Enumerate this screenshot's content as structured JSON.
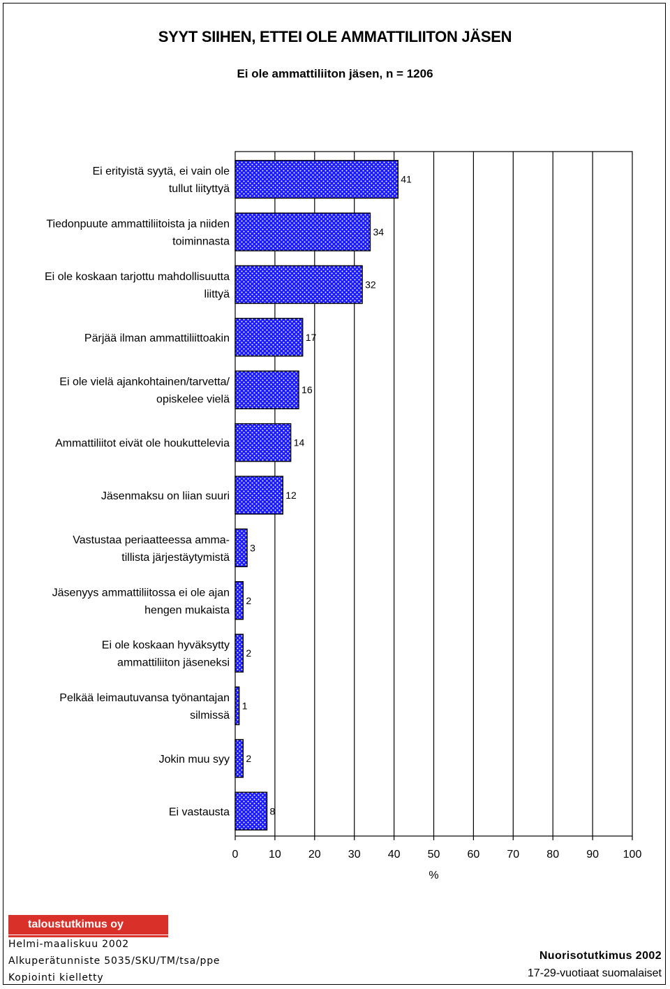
{
  "title": "SYYT SIIHEN, ETTEI OLE AMMATTILIITON JÄSEN",
  "subtitle": "Ei ole ammattiliiton jäsen, n = 1206",
  "chart_data": {
    "type": "bar",
    "orientation": "horizontal",
    "title": "SYYT SIIHEN, ETTEI OLE AMMATTILIITON JÄSEN",
    "subtitle": "Ei ole ammattiliiton jäsen, n = 1206",
    "xlabel": "%",
    "ylabel": "",
    "xlim": [
      0,
      100
    ],
    "xticks": [
      0,
      10,
      20,
      30,
      40,
      50,
      60,
      70,
      80,
      90,
      100
    ],
    "grid": true,
    "categories": [
      [
        "Ei erityistä syytä, ei vain ole",
        "tullut liityttyä"
      ],
      [
        "Tiedonpuute ammattiliitoista ja niiden",
        "toiminnasta"
      ],
      [
        "Ei ole koskaan tarjottu mahdollisuutta",
        "liittyä"
      ],
      [
        "Pärjää ilman ammattiliittoakin"
      ],
      [
        "Ei ole vielä ajankohtainen/tarvetta/",
        "opiskelee vielä"
      ],
      [
        "Ammattiliitot eivät ole houkuttelevia"
      ],
      [
        "Jäsenmaksu on liian suuri"
      ],
      [
        "Vastustaa periaatteessa amma-",
        "tillista järjestäytymistä"
      ],
      [
        "Jäsenyys ammattiliitossa ei ole ajan",
        "hengen mukaista"
      ],
      [
        "Ei ole koskaan hyväksytty",
        "ammattiliiton jäseneksi"
      ],
      [
        "Pelkää leimautuvansa työnantajan",
        "silmissä"
      ],
      [
        "Jokin muu syy"
      ],
      [
        "Ei vastausta"
      ]
    ],
    "values": [
      41,
      34,
      32,
      17,
      16,
      14,
      12,
      3,
      2,
      2,
      1,
      2,
      8
    ],
    "bar_color": "#1a1aff"
  },
  "footer": {
    "logo": "taloustutkimus oy",
    "line1": "Helmi-maaliskuu 2002",
    "line2": "Alkuperätunniste 5035/SKU/TM/tsa/ppe",
    "line3": "Kopiointi kielletty",
    "right1": "Nuorisotutkimus 2002",
    "right2": "17-29-vuotiaat suomalaiset"
  }
}
